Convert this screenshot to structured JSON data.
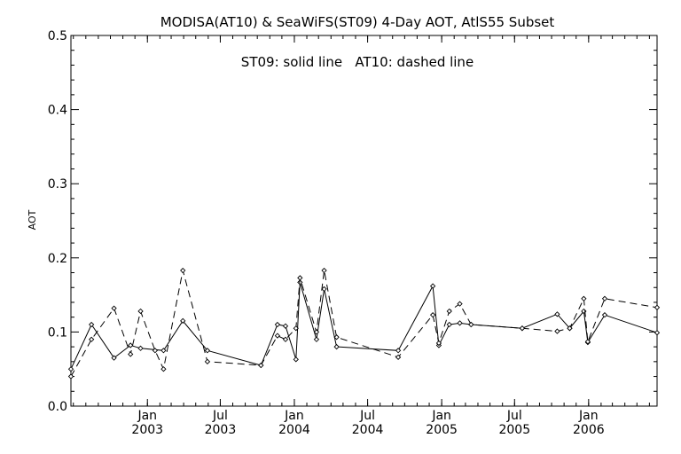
{
  "chart_data": {
    "type": "line",
    "title": "MODISA(AT10) & SeaWiFS(ST09) 4-Day AOT, AtlS55 Subset",
    "annotation": "ST09: solid line   AT10: dashed line",
    "ylabel": "AOT",
    "xlabel": "",
    "xlim": [
      "2002-06-25",
      "2006-06-20"
    ],
    "ylim": [
      0.0,
      0.5
    ],
    "yticks": [
      "0.0",
      "0.1",
      "0.2",
      "0.3",
      "0.4",
      "0.5"
    ],
    "xticks": [
      {
        "date": "2003-01-01",
        "month": "Jan",
        "year": "2003"
      },
      {
        "date": "2003-07-01",
        "month": "Jul",
        "year": "2003"
      },
      {
        "date": "2004-01-01",
        "month": "Jan",
        "year": "2004"
      },
      {
        "date": "2004-07-01",
        "month": "Jul",
        "year": "2004"
      },
      {
        "date": "2005-01-01",
        "month": "Jan",
        "year": "2005"
      },
      {
        "date": "2005-07-01",
        "month": "Jul",
        "year": "2005"
      },
      {
        "date": "2006-01-01",
        "month": "Jan",
        "year": "2006"
      }
    ],
    "grid": false,
    "legend": "none",
    "series": [
      {
        "label": "ST09",
        "style": "solid",
        "color": "#000000",
        "markers": true,
        "points": [
          [
            "2002-06-25",
            0.05
          ],
          [
            "2002-08-15",
            0.11
          ],
          [
            "2002-10-10",
            0.065
          ],
          [
            "2002-11-20",
            0.082
          ],
          [
            "2002-12-15",
            0.078
          ],
          [
            "2003-02-10",
            0.075
          ],
          [
            "2003-03-30",
            0.115
          ],
          [
            "2003-05-30",
            0.075
          ],
          [
            "2003-10-10",
            0.055
          ],
          [
            "2003-11-20",
            0.11
          ],
          [
            "2003-12-10",
            0.108
          ],
          [
            "2004-01-05",
            0.063
          ],
          [
            "2004-01-15",
            0.167
          ],
          [
            "2004-02-25",
            0.09
          ],
          [
            "2004-03-15",
            0.158
          ],
          [
            "2004-04-15",
            0.08
          ],
          [
            "2004-09-15",
            0.075
          ],
          [
            "2004-12-10",
            0.162
          ],
          [
            "2004-12-25",
            0.082
          ],
          [
            "2005-01-20",
            0.11
          ],
          [
            "2005-02-15",
            0.112
          ],
          [
            "2005-03-15",
            0.11
          ],
          [
            "2005-07-20",
            0.105
          ],
          [
            "2005-10-15",
            0.124
          ],
          [
            "2005-11-15",
            0.105
          ],
          [
            "2005-12-20",
            0.128
          ],
          [
            "2005-12-30",
            0.086
          ],
          [
            "2006-02-10",
            0.123
          ],
          [
            "2006-06-20",
            0.099
          ]
        ]
      },
      {
        "label": "AT10",
        "style": "dashed",
        "color": "#000000",
        "markers": true,
        "points": [
          [
            "2002-06-25",
            0.04
          ],
          [
            "2002-08-15",
            0.09
          ],
          [
            "2002-10-10",
            0.132
          ],
          [
            "2002-11-20",
            0.07
          ],
          [
            "2002-12-15",
            0.128
          ],
          [
            "2003-01-20",
            0.075
          ],
          [
            "2003-02-10",
            0.05
          ],
          [
            "2003-03-30",
            0.183
          ],
          [
            "2003-05-30",
            0.06
          ],
          [
            "2003-10-10",
            0.055
          ],
          [
            "2003-11-20",
            0.095
          ],
          [
            "2003-12-10",
            0.09
          ],
          [
            "2004-01-05",
            0.105
          ],
          [
            "2004-01-15",
            0.173
          ],
          [
            "2004-02-25",
            0.1
          ],
          [
            "2004-03-15",
            0.183
          ],
          [
            "2004-04-15",
            0.093
          ],
          [
            "2004-09-15",
            0.066
          ],
          [
            "2004-12-10",
            0.123
          ],
          [
            "2004-12-25",
            0.085
          ],
          [
            "2005-01-20",
            0.128
          ],
          [
            "2005-02-15",
            0.138
          ],
          [
            "2005-03-15",
            0.11
          ],
          [
            "2005-07-20",
            0.105
          ],
          [
            "2005-10-15",
            0.101
          ],
          [
            "2005-11-15",
            0.105
          ],
          [
            "2005-12-20",
            0.145
          ],
          [
            "2005-12-30",
            0.087
          ],
          [
            "2006-02-10",
            0.145
          ],
          [
            "2006-06-20",
            0.133
          ]
        ]
      }
    ]
  }
}
